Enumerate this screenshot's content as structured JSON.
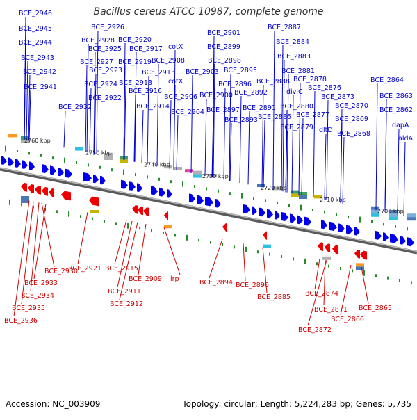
{
  "title": "Bacillus cereus ATCC 10987, complete genome",
  "footer": {
    "accession": "Accession: NC_003909",
    "topology": "Topology: circular; Length: 5,224,283 bp; Genes: 5,735"
  },
  "colors": {
    "forward_gene": "#0000ee",
    "reverse_gene": "#ee0000",
    "backbone": "#888888",
    "tick": "#2a8a2a",
    "cog_palette": [
      "#4a78b4",
      "#7ab0d8",
      "#3fa060",
      "#c8b400",
      "#b0b0b0",
      "#e040a0",
      "#30c0e0",
      "#ff9a20",
      "#8a7ad0"
    ]
  },
  "scale_labels": [
    "2760 kbp",
    "2750 kbp",
    "2740 kbp",
    "2730 kbp",
    "2720 kbp",
    "2710 kbp",
    "2700 kbp"
  ],
  "forward_labels": [
    "BCE_2946",
    "BCE_2945",
    "BCE_2944",
    "BCE_2943",
    "BCE_2942",
    "BCE_2941",
    "BCE_2926",
    "BCE_2928",
    "BCE_2925",
    "BCE_2927",
    "BCE_2923",
    "BCE_2924",
    "BCE_2922",
    "BCE_2932",
    "BCE_2920",
    "BCE_2917",
    "BCE_2919",
    "BCE_2918",
    "BCE_2916",
    "BCE_2914",
    "cotX",
    "BCE_2908",
    "BCE_2913",
    "cotX",
    "BCE_2906",
    "BCE_2904",
    "BCE_2901",
    "BCE_2899",
    "BCE_2898",
    "BCE_2903",
    "BCE_2895",
    "BCE_2896",
    "BCE_2900",
    "BCE_2892",
    "BCE_2897",
    "BCE_2893",
    "BCE_2887",
    "BCE_2884",
    "BCE_2883",
    "BCE_2881",
    "BCE_2888",
    "BCE_2878",
    "divIC",
    "BCE_2876",
    "BCE_2880",
    "BCE_2891",
    "BCE_2886",
    "BCE_2877",
    "BCE_2879",
    "BCE_2873",
    "dltD",
    "BCE_2870",
    "BCE_2869",
    "BCE_2868",
    "BCE_2864",
    "BCE_2863",
    "BCE_2862",
    "dapA",
    "aldA"
  ],
  "reverse_labels": [
    "BCE_2930",
    "BCE_2933",
    "BCE_2934",
    "BCE_2935",
    "BCE_2936",
    "BCE_2921",
    "BCE_2915",
    "BCE_2911",
    "BCE_2912",
    "BCE_2909",
    "lrp",
    "BCE_2894",
    "BCE_2890",
    "BCE_2885",
    "BCE_2874",
    "BCE_2871",
    "BCE_2872",
    "BCE_2866",
    "BCE_2865"
  ]
}
